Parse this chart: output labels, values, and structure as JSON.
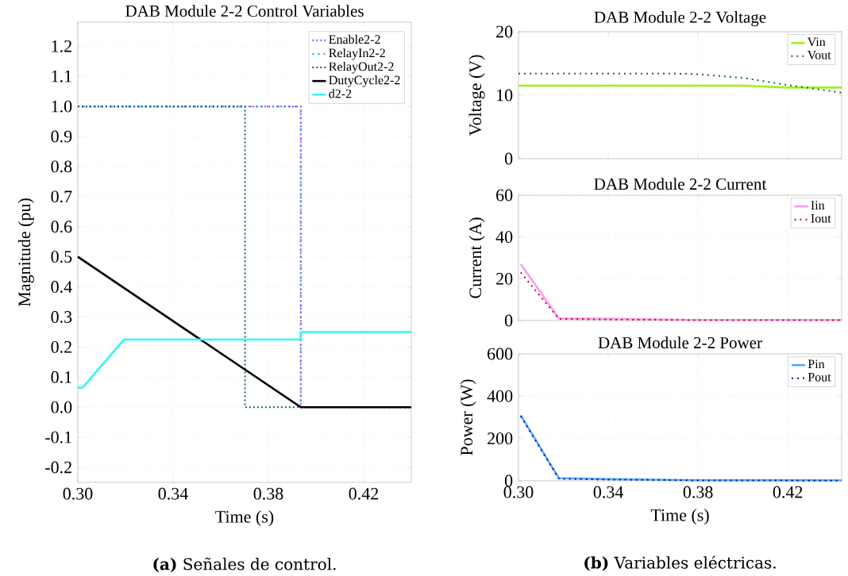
{
  "chart_data": [
    {
      "type": "line",
      "title": "DAB Module 2-2 Control Variables",
      "xlabel": "Time (s)",
      "ylabel": "Magnitude (pu)",
      "xlim": [
        0.3,
        0.44
      ],
      "ylim": [
        -0.25,
        1.28
      ],
      "xticks": [
        {
          "value": 0.3,
          "label": "0.30"
        },
        0.34,
        0.38,
        0.42
      ],
      "yticks": [
        -0.2,
        -0.1,
        {
          "value": 0,
          "label": "0.0"
        },
        0.1,
        0.2,
        0.3,
        0.4,
        0.5,
        0.6,
        0.7,
        0.8,
        0.9,
        {
          "value": 1,
          "label": "1.0"
        },
        1.1,
        1.2
      ],
      "grid": true,
      "legend": "top right",
      "annotations": [
        "**(a)** Señales de control."
      ],
      "series": [
        {
          "name": "Enable2-2",
          "color": "#b040f0",
          "line_style": "dotted",
          "x": [
            0.3,
            0.3936,
            0.3936,
            0.44
          ],
          "values": [
            1,
            1,
            0,
            0
          ]
        },
        {
          "name": "RelayIn2-2",
          "color": "#20a0f0",
          "line_style": "dotted",
          "x": [
            0.3,
            0.3936,
            0.3936,
            0.44
          ],
          "values": [
            1,
            1,
            0,
            0
          ]
        },
        {
          "name": "RelayOut2-2",
          "color": "#1a5a7a",
          "line_style": "dotted",
          "x": [
            0.3,
            0.3702,
            0.3702,
            0.44
          ],
          "values": [
            1,
            1,
            0,
            0
          ]
        },
        {
          "name": "DutyCycle2-2",
          "color": "#000000",
          "line_style": "solid",
          "x": [
            0.3,
            0.3936,
            0.44
          ],
          "values": [
            0.5,
            0,
            0
          ]
        },
        {
          "name": "d2-2",
          "color": "#33f5f5",
          "line_style": "solid",
          "x": [
            0.3,
            0.302,
            0.3194,
            0.3936,
            0.3936,
            0.44
          ],
          "values": [
            0.065,
            0.065,
            0.225,
            0.225,
            0.25,
            0.25
          ]
        }
      ]
    },
    {
      "type": "line",
      "title": "DAB Module 2-2 Voltage",
      "ylabel": "Voltage (V)",
      "xlim": [
        0.3,
        0.444
      ],
      "ylim": [
        0,
        20
      ],
      "xticks": [
        {
          "value": 0.3,
          "label": null
        },
        {
          "value": 0.34,
          "label": null
        },
        {
          "value": 0.38,
          "label": null
        },
        {
          "value": 0.42,
          "label": null
        }
      ],
      "yticks": [
        0,
        10,
        20
      ],
      "grid": true,
      "legend": "top right",
      "tick_labels": "y",
      "series": [
        {
          "name": "Vin",
          "color": "#a0f020",
          "line_style": "solid",
          "x": [
            0.3,
            0.38,
            0.4,
            0.42,
            0.444
          ],
          "values": [
            11.5,
            11.5,
            11.5,
            11.2,
            11.2
          ]
        },
        {
          "name": "Vout",
          "color": "#1a6a2a",
          "line_style": "dotted",
          "x": [
            0.3,
            0.37,
            0.3805,
            0.4007,
            0.42,
            0.444
          ],
          "values": [
            13.4,
            13.4,
            13.3,
            12.7,
            11.6,
            10.4
          ]
        }
      ]
    },
    {
      "type": "line",
      "title": "DAB Module 2-2 Current",
      "ylabel": "Current (A)",
      "xlim": [
        0.3,
        0.444
      ],
      "ylim": [
        0,
        60
      ],
      "xticks": [
        {
          "value": 0.3,
          "label": null
        },
        {
          "value": 0.34,
          "label": null
        },
        {
          "value": 0.38,
          "label": null
        },
        {
          "value": 0.42,
          "label": null
        }
      ],
      "yticks": [
        0,
        20,
        40,
        60
      ],
      "grid": true,
      "legend": "top right",
      "tick_labels": "y",
      "series": [
        {
          "name": "Iin",
          "color": "#ff99ee",
          "line_style": "solid",
          "x": [
            0.301,
            0.318,
            0.34,
            0.38,
            0.444
          ],
          "values": [
            27,
            1,
            0.8,
            0.3,
            0.3
          ]
        },
        {
          "name": "Iout",
          "color": "#b01010",
          "line_style": "dotted",
          "x": [
            0.301,
            0.318,
            0.34,
            0.38,
            0.444
          ],
          "values": [
            23,
            0.8,
            0.5,
            0.2,
            0.2
          ]
        }
      ]
    },
    {
      "type": "line",
      "title": "DAB Module 2-2 Power",
      "xlabel": "Time (s)",
      "ylabel": "Power (W)",
      "xlim": [
        0.3,
        0.444
      ],
      "ylim": [
        0,
        600
      ],
      "xticks": [
        {
          "value": 0.3,
          "label": "0.30"
        },
        0.34,
        0.38,
        0.42
      ],
      "yticks": [
        0,
        200,
        400,
        600
      ],
      "grid": true,
      "legend": "top right",
      "annotations": [
        "**(b)** Variables eléctricas."
      ],
      "series": [
        {
          "name": "Pin",
          "color": "#55aaff",
          "line_style": "solid",
          "x": [
            0.301,
            0.318,
            0.34,
            0.38,
            0.444
          ],
          "values": [
            310,
            12,
            8,
            3,
            2
          ]
        },
        {
          "name": "Pout",
          "color": "#101080",
          "line_style": "dotted",
          "x": [
            0.301,
            0.318,
            0.34,
            0.38,
            0.444
          ],
          "values": [
            305,
            10,
            6,
            2,
            1
          ]
        }
      ]
    }
  ]
}
